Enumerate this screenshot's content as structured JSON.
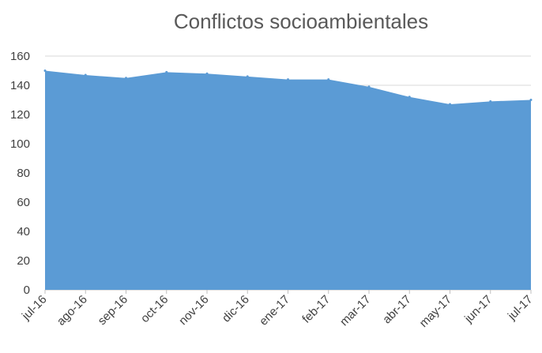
{
  "chart_data": {
    "type": "area",
    "title": "Conflictos socioambientales",
    "xlabel": "",
    "ylabel": "",
    "categories": [
      "jul-16",
      "ago-16",
      "sep-16",
      "oct-16",
      "nov-16",
      "dic-16",
      "ene-17",
      "feb-17",
      "mar-17",
      "abr-17",
      "may-17",
      "jun-17",
      "jul-17"
    ],
    "series": [
      {
        "values": [
          150,
          147,
          145,
          149,
          148,
          146,
          144,
          144,
          139,
          132,
          127,
          129,
          130
        ]
      }
    ],
    "ylim": [
      0,
      160
    ],
    "yticks": [
      "0",
      "20",
      "40",
      "60",
      "80",
      "100",
      "120",
      "140",
      "160"
    ],
    "grid": true,
    "legend": "none",
    "colors": {
      "area": "#5b9bd5",
      "grid": "#d9d9d9",
      "text": "#595959"
    }
  }
}
